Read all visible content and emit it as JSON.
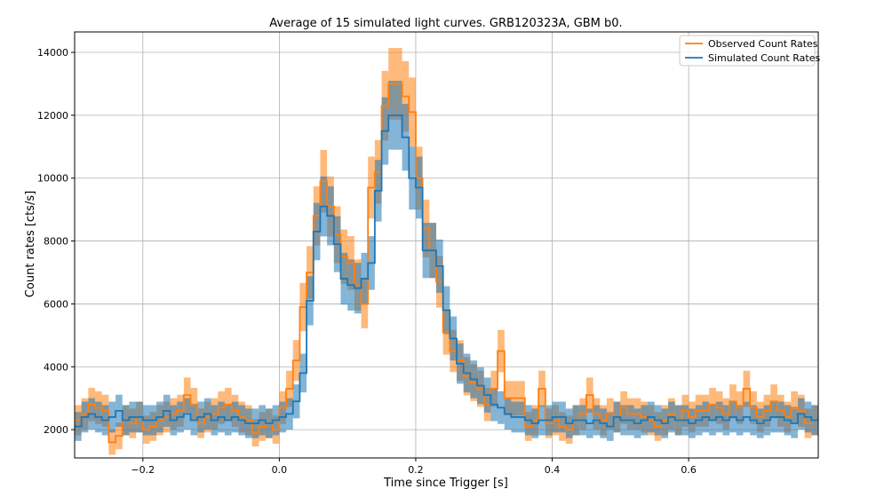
{
  "chart_data": {
    "type": "line",
    "title": "Average of 15 simulated light curves. GRB120323A, GBM b0.",
    "xlabel": "Time since Trigger [s]",
    "ylabel": "Count rates [cts/s]",
    "xlim": [
      -0.3,
      0.79
    ],
    "ylim": [
      1100,
      14650
    ],
    "xticks": [
      -0.2,
      0.0,
      0.2,
      0.4,
      0.6
    ],
    "yticks": [
      2000,
      4000,
      6000,
      8000,
      10000,
      12000,
      14000
    ],
    "grid": true,
    "legend_position": "top-right",
    "x_start": -0.3,
    "bin_width": 0.01,
    "series": [
      {
        "name": "Observed Count Rates",
        "color": "#ff7f0e",
        "style": "step",
        "error_band": true,
        "values": [
          2300,
          2500,
          2800,
          2700,
          2600,
          1600,
          1800,
          2300,
          2200,
          2400,
          2000,
          2100,
          2300,
          2400,
          2500,
          2600,
          3100,
          2800,
          2200,
          2400,
          2500,
          2700,
          2800,
          2600,
          2400,
          2300,
          1900,
          2100,
          2200,
          2000,
          2700,
          3300,
          4200,
          5900,
          7000,
          8800,
          9900,
          9100,
          8200,
          7500,
          7300,
          6600,
          6000,
          9700,
          10200,
          12300,
          13000,
          13000,
          12600,
          12100,
          10000,
          8400,
          7700,
          6700,
          5100,
          4500,
          4200,
          3700,
          3500,
          3300,
          2800,
          3300,
          4500,
          3000,
          3000,
          3000,
          2100,
          2300,
          3300,
          2200,
          2300,
          2100,
          2000,
          2300,
          2500,
          3100,
          2500,
          2300,
          2500,
          2400,
          2700,
          2500,
          2500,
          2400,
          2300,
          2100,
          2300,
          2500,
          2300,
          2600,
          2400,
          2600,
          2600,
          2800,
          2700,
          2500,
          2900,
          2700,
          3300,
          2700,
          2400,
          2600,
          2900,
          2600,
          2400,
          2700,
          2600,
          2200,
          2300,
          2700,
          2500,
          2900,
          2400,
          2600,
          2400,
          2100,
          2200,
          2400,
          2500,
          2700,
          2200,
          2600,
          2200,
          2500,
          2400,
          2000,
          2400,
          2500,
          2800
        ]
      },
      {
        "name": "Simulated Count Rates",
        "color": "#1f77b4",
        "style": "step",
        "error_band": true,
        "values": [
          2100,
          2400,
          2500,
          2400,
          2300,
          2400,
          2600,
          2300,
          2400,
          2400,
          2300,
          2300,
          2400,
          2600,
          2300,
          2400,
          2500,
          2300,
          2400,
          2500,
          2300,
          2400,
          2300,
          2400,
          2300,
          2200,
          2200,
          2300,
          2200,
          2300,
          2400,
          2500,
          2900,
          3800,
          6100,
          8300,
          9100,
          8800,
          7900,
          6800,
          6600,
          6500,
          6800,
          7300,
          9600,
          11500,
          12000,
          12000,
          11300,
          10000,
          9700,
          7700,
          7700,
          7200,
          5800,
          4900,
          4100,
          3800,
          3600,
          3400,
          3100,
          2800,
          2700,
          2500,
          2400,
          2400,
          2300,
          2200,
          2300,
          2300,
          2400,
          2400,
          2200,
          2300,
          2300,
          2200,
          2300,
          2200,
          2100,
          2400,
          2300,
          2300,
          2200,
          2300,
          2400,
          2300,
          2200,
          2400,
          2300,
          2300,
          2200,
          2300,
          2400,
          2300,
          2400,
          2300,
          2400,
          2300,
          2400,
          2300,
          2200,
          2300,
          2400,
          2400,
          2300,
          2200,
          2500,
          2400,
          2300,
          2400,
          2300,
          2400,
          2500,
          2300,
          2200,
          2600,
          2400,
          2300,
          2200,
          2300,
          2400,
          2300,
          2300,
          2300,
          2400,
          2400,
          2300,
          2400,
          2300
        ]
      }
    ]
  }
}
